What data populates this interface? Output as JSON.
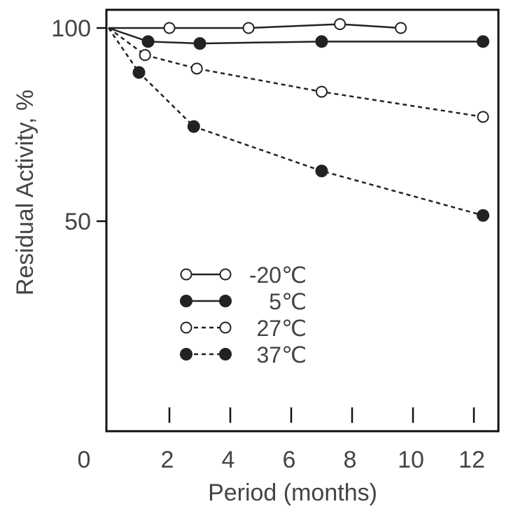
{
  "chart_data": {
    "type": "line",
    "title": "",
    "xlabel": "Period (months)",
    "ylabel": "Residual Activity, %",
    "xlim": [
      0,
      13
    ],
    "ylim": [
      0,
      105
    ],
    "x_ticks": [
      0,
      2,
      4,
      6,
      8,
      10,
      12
    ],
    "y_ticks": [
      50,
      100
    ],
    "grid": false,
    "legend_position": "lower-left inside",
    "series": [
      {
        "name": "-20℃",
        "marker": "open-circle",
        "line": "solid",
        "points": [
          [
            0,
            100
          ],
          [
            2,
            100
          ],
          [
            4.6,
            100
          ],
          [
            7.6,
            101
          ],
          [
            9.6,
            100
          ]
        ]
      },
      {
        "name": "5℃",
        "marker": "filled-circle",
        "line": "solid",
        "points": [
          [
            0,
            100
          ],
          [
            1.3,
            96.5
          ],
          [
            3,
            96
          ],
          [
            7,
            96.5
          ],
          [
            12.3,
            96.5
          ]
        ]
      },
      {
        "name": "27℃",
        "marker": "open-circle",
        "line": "dashed",
        "points": [
          [
            0,
            100
          ],
          [
            1.2,
            93
          ],
          [
            2.9,
            89.5
          ],
          [
            7,
            83.5
          ],
          [
            12.3,
            77
          ]
        ]
      },
      {
        "name": "37℃",
        "marker": "filled-circle",
        "line": "dashed",
        "points": [
          [
            0,
            100
          ],
          [
            1,
            88.5
          ],
          [
            2.8,
            74.5
          ],
          [
            7,
            63
          ],
          [
            12.3,
            51.5
          ]
        ]
      }
    ],
    "colors": {
      "line": "#222222",
      "axis": "#111111",
      "text": "#444444"
    }
  }
}
